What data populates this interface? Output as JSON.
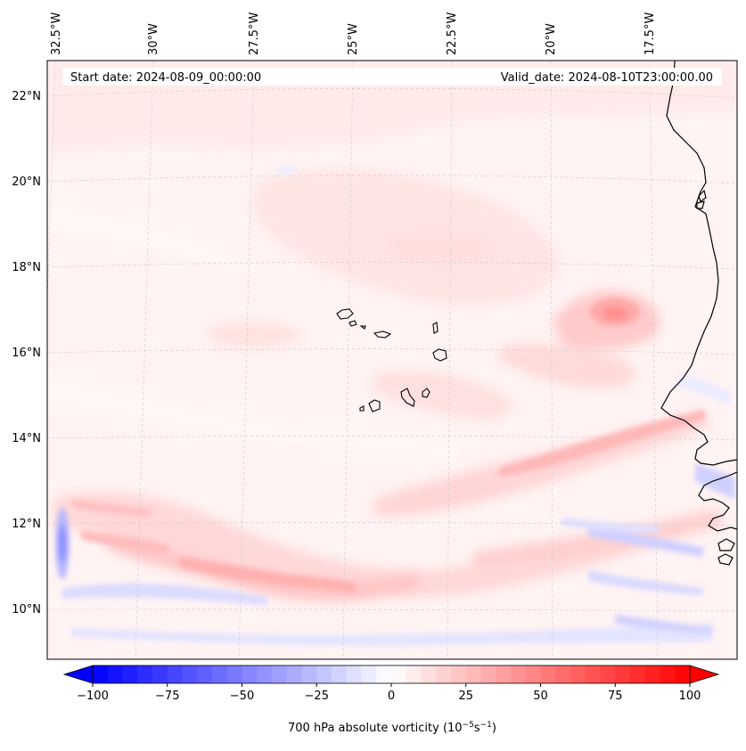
{
  "map": {
    "start_date": "Start date: 2024-08-09_00:00:00",
    "valid_date": "Valid_date: 2024-08-10T23:00:00.00",
    "longitude_labels": [
      "32.5°W",
      "30°W",
      "27.5°W",
      "25°W",
      "22.5°W",
      "20°W",
      "17.5°W"
    ],
    "latitude_labels": [
      "22°N",
      "20°N",
      "18°N",
      "16°N",
      "14°N",
      "12°N",
      "10°N"
    ],
    "field": "700 hPa absolute vorticity"
  },
  "colorbar": {
    "label": "700 hPa absolute vorticity (10",
    "label_exp1": "−5",
    "label_mid": "s",
    "label_exp2": "−1",
    "label_end": ")",
    "ticks": [
      "−100",
      "−75",
      "−50",
      "−25",
      "0",
      "25",
      "50",
      "75",
      "100"
    ],
    "min": -100,
    "max": 100,
    "levels": 40,
    "colors": {
      "negative": "#0000ff",
      "neutral": "#ffffff",
      "positive": "#ff0000"
    }
  }
}
